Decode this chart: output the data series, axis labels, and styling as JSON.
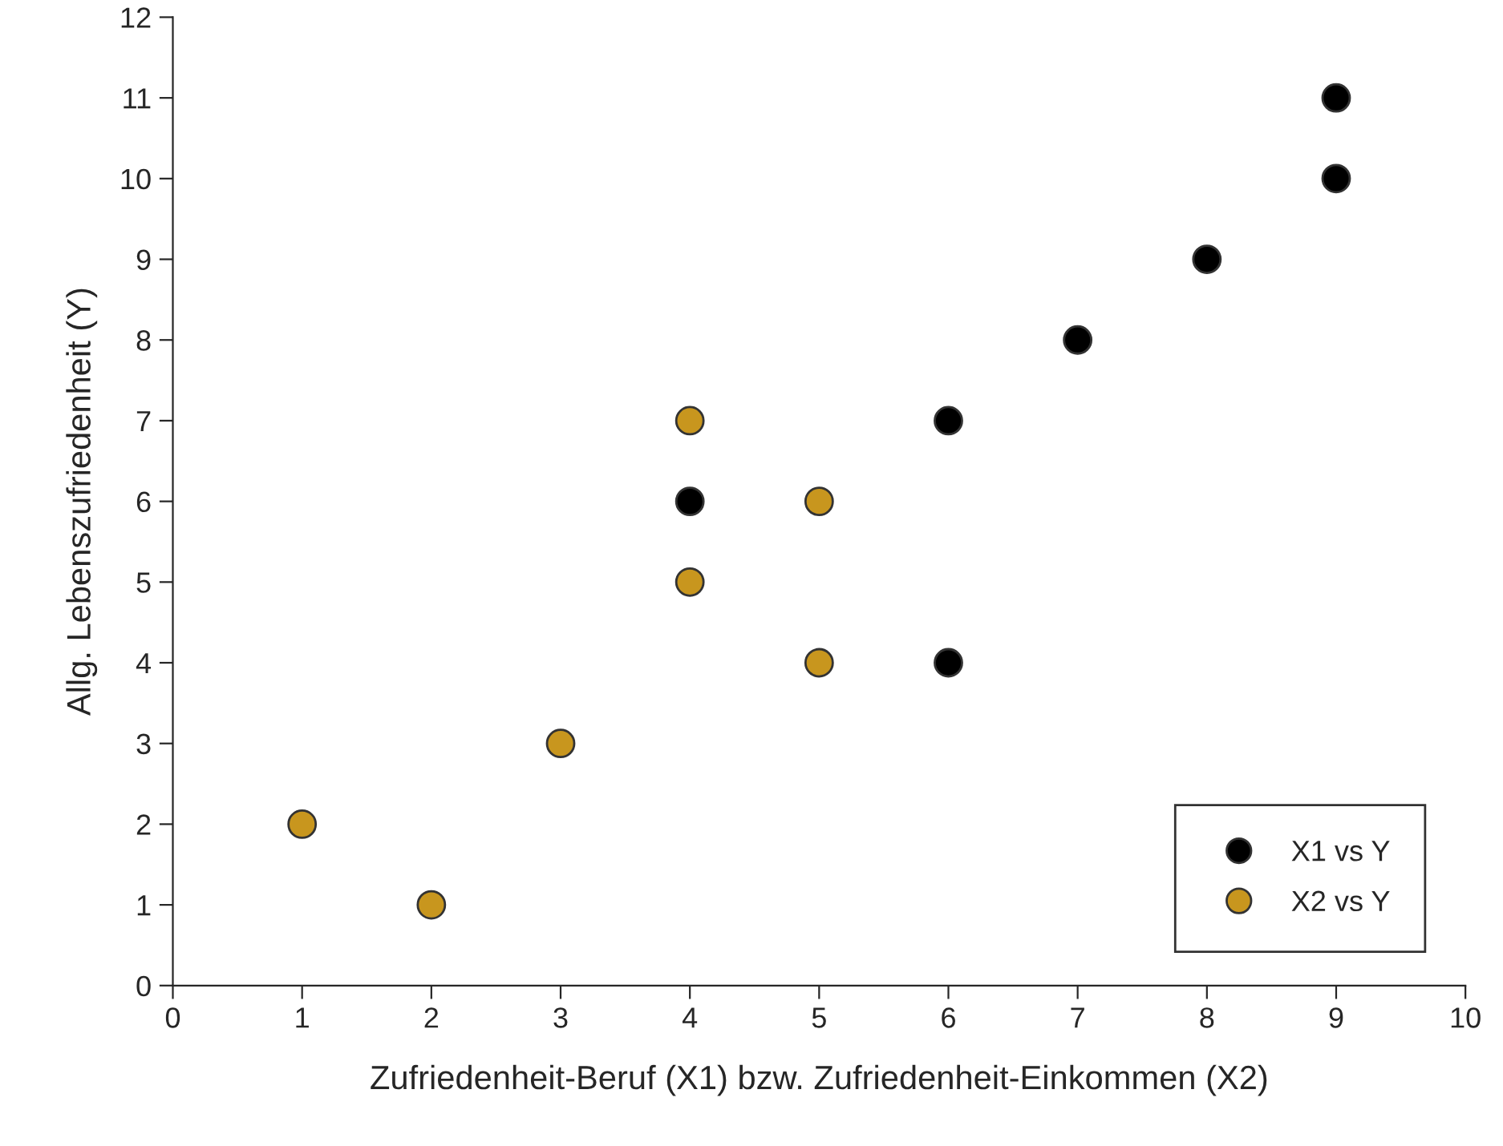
{
  "chart_data": {
    "type": "scatter",
    "xlabel": "Zufriedenheit-Beruf (X1) bzw. Zufriedenheit-Einkommen (X2)",
    "ylabel": "Allg. Lebenszufriedenheit (Y)",
    "series": [
      {
        "name": "X1 vs Y",
        "color": "#000000",
        "x": [
          4,
          6,
          6,
          7,
          8,
          9,
          9
        ],
        "values": [
          6,
          7,
          4,
          8,
          9,
          10,
          11
        ]
      },
      {
        "name": "X2 vs Y",
        "color": "#c8961e",
        "x": [
          1,
          2,
          3,
          4,
          4,
          5,
          5
        ],
        "values": [
          2,
          1,
          3,
          5,
          7,
          6,
          4
        ]
      }
    ],
    "xlim": [
      0,
      10
    ],
    "xticks": [
      0,
      1,
      2,
      3,
      4,
      5,
      6,
      7,
      8,
      9,
      10
    ],
    "ylim": [
      0,
      12
    ],
    "yticks": [
      0,
      1,
      2,
      3,
      4,
      5,
      6,
      7,
      8,
      9,
      10,
      11,
      12
    ],
    "marker": "circle",
    "grid": false,
    "legend": "bottom right"
  }
}
